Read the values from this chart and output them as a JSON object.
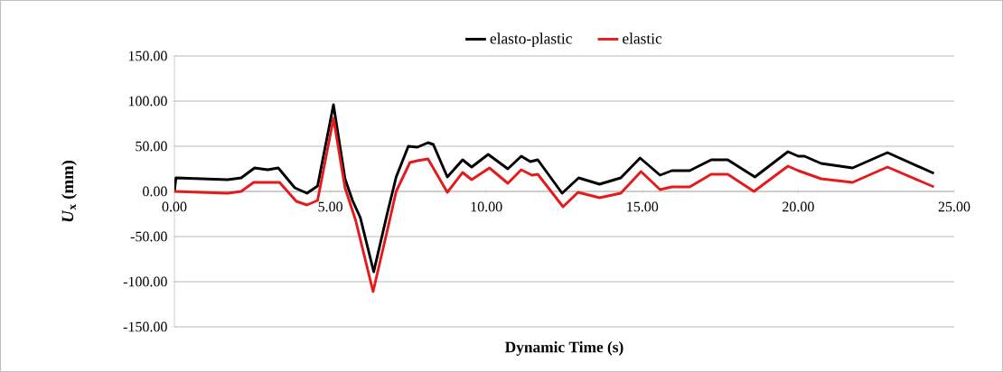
{
  "chart_data": {
    "type": "line",
    "xlabel": "Dynamic Time (s)",
    "ylabel": "*U*$_{x}$ (mm)",
    "xlim": [
      0,
      25
    ],
    "ylim": [
      -150,
      150
    ],
    "xticks": [
      {
        "value": 0,
        "label": "0.00"
      },
      {
        "value": 5,
        "label": "5.00"
      },
      {
        "value": 10,
        "label": "10.00"
      },
      {
        "value": 15,
        "label": "15.00"
      },
      {
        "value": 20,
        "label": "20.00"
      },
      {
        "value": 25,
        "label": "25.00"
      }
    ],
    "yticks": [
      {
        "value": -150,
        "label": "-150.00"
      },
      {
        "value": -100,
        "label": "-100.00"
      },
      {
        "value": -50,
        "label": "-50.00"
      },
      {
        "value": 0,
        "label": "0.00"
      },
      {
        "value": 50,
        "label": "50.00"
      },
      {
        "value": 100,
        "label": "100.00"
      },
      {
        "value": 150,
        "label": "150.00"
      }
    ],
    "grid": "y",
    "legend": "top",
    "series": [
      {
        "name": "elasto-plastic",
        "color": "#000000",
        "x": [
          0,
          0.05,
          1.7,
          2.14,
          2.57,
          2.99,
          3.33,
          3.86,
          4.25,
          4.59,
          5.1,
          5.47,
          5.71,
          5.96,
          6.39,
          6.82,
          7.11,
          7.5,
          7.79,
          8.13,
          8.3,
          8.75,
          9.24,
          9.53,
          10.06,
          10.69,
          11.12,
          11.41,
          11.65,
          12.43,
          12.96,
          13.63,
          14.31,
          14.93,
          15.57,
          15.95,
          16.52,
          17.21,
          17.74,
          18.61,
          19.67,
          20.0,
          20.2,
          20.73,
          21.74,
          22.86,
          24.35
        ],
        "values": [
          0,
          15,
          13,
          15,
          26,
          24,
          26,
          4,
          -2,
          6,
          96,
          14,
          -10,
          -29,
          -89,
          -25,
          16,
          50,
          49,
          54,
          52,
          16,
          35,
          27,
          41,
          25,
          39,
          33,
          35,
          -2,
          15,
          8,
          15,
          37,
          18,
          23,
          23,
          35,
          35,
          16,
          44,
          39,
          39,
          31,
          26,
          43,
          20
        ]
      },
      {
        "name": "elastic",
        "color": "#e41a1c",
        "x": [
          0,
          1.69,
          2.14,
          2.54,
          3.37,
          3.91,
          4.25,
          4.59,
          5.1,
          5.47,
          5.81,
          6.37,
          6.82,
          7.11,
          7.55,
          7.79,
          8.13,
          8.75,
          9.24,
          9.53,
          10.1,
          10.69,
          11.12,
          11.46,
          11.65,
          12.46,
          12.94,
          13.63,
          14.31,
          14.96,
          15.57,
          15.95,
          16.52,
          17.21,
          17.74,
          18.58,
          19.67,
          20.0,
          20.73,
          21.74,
          22.86,
          24.35
        ],
        "values": [
          0,
          -2,
          0,
          10,
          10,
          -11,
          -15,
          -10,
          81,
          4,
          -32,
          -111,
          -44,
          0,
          32,
          34,
          36,
          -1,
          21,
          13,
          26,
          9,
          24,
          18,
          19,
          -17,
          -1,
          -7,
          -2,
          22,
          2,
          5,
          5,
          19,
          19,
          0,
          28,
          23,
          14,
          10,
          27,
          5
        ]
      }
    ]
  }
}
